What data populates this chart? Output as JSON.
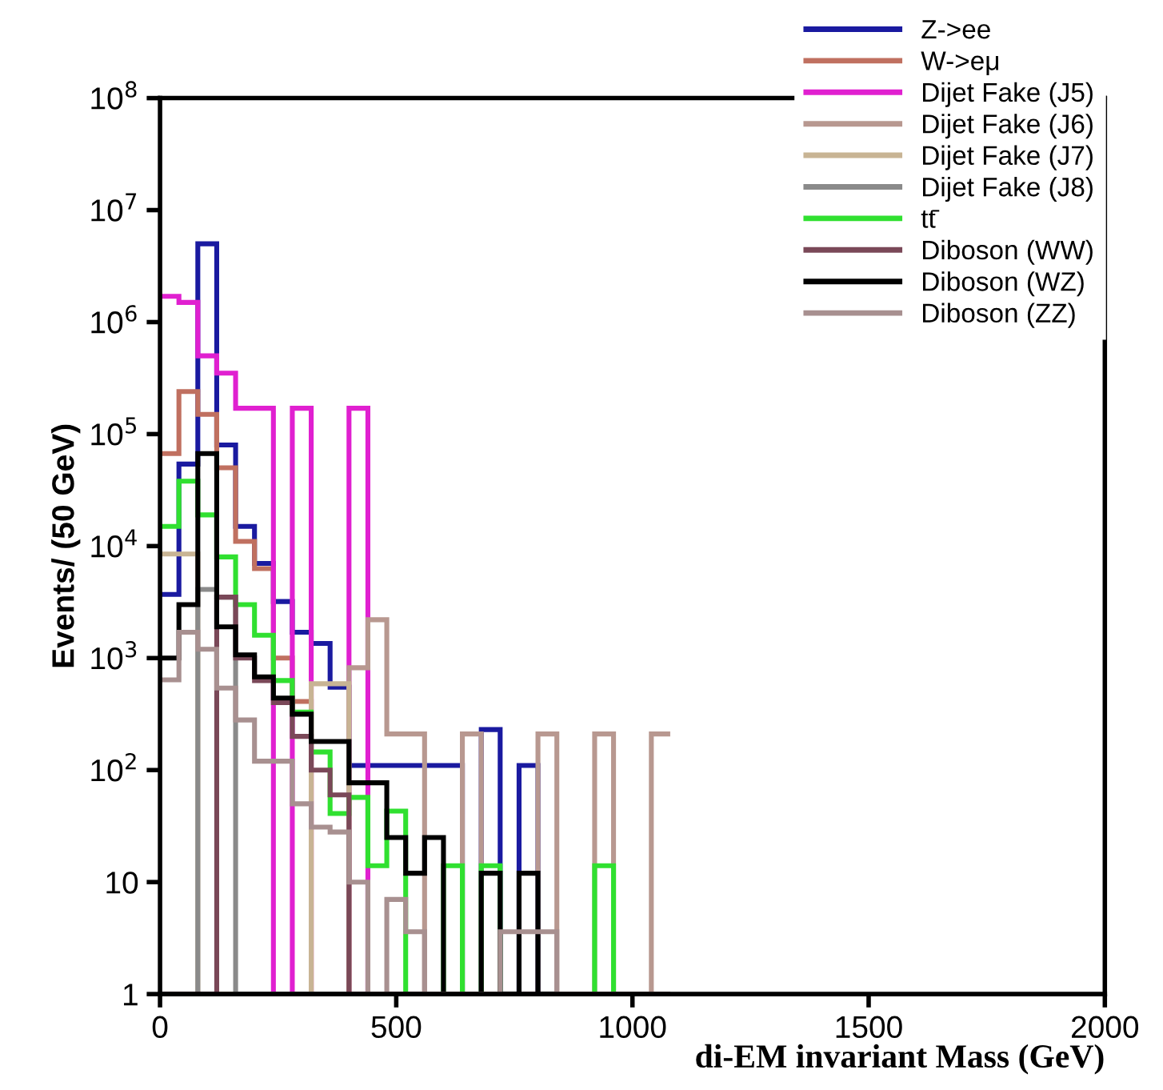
{
  "chart_data": {
    "type": "histogram",
    "xlabel": "di-EM invariant Mass (GeV)",
    "ylabel": "Events/ (50 GeV)",
    "bins": [
      0,
      40,
      80,
      120,
      160,
      200,
      240,
      280,
      320,
      360,
      400,
      440,
      480,
      520,
      560,
      600,
      640,
      680,
      720,
      760,
      800,
      840,
      880,
      920,
      960,
      1000,
      1040,
      1080
    ],
    "series": [
      {
        "name": "Z->ee",
        "color": "#1a1aa0",
        "values": [
          3700,
          54000,
          5000000,
          80000,
          15000,
          7000,
          3200,
          1700,
          1350,
          550,
          110,
          110,
          110,
          110,
          110,
          110,
          null,
          230,
          null,
          110,
          null,
          null,
          null,
          null,
          null,
          null,
          null
        ]
      },
      {
        "name": "W->eμ",
        "color": "#c07060",
        "values": [
          67000,
          240000,
          150000,
          50000,
          11000,
          6300,
          1000,
          410,
          null,
          null,
          null,
          null,
          null,
          null,
          null,
          null,
          null,
          null,
          null,
          null,
          null,
          null,
          null,
          null,
          null,
          null,
          null
        ]
      },
      {
        "name": "Dijet Fake (J5)",
        "color": "#e020d0",
        "values": [
          1700000,
          1500000,
          500000,
          350000,
          170000,
          170000,
          null,
          170000,
          null,
          null,
          170000,
          null,
          null,
          null,
          null,
          null,
          null,
          null,
          null,
          null,
          null,
          null,
          null,
          null,
          null,
          null,
          null
        ]
      },
      {
        "name": "Dijet Fake (J6)",
        "color": "#b89890",
        "values": [
          null,
          null,
          null,
          null,
          null,
          null,
          null,
          null,
          null,
          null,
          820,
          2200,
          210,
          210,
          null,
          null,
          210,
          null,
          null,
          null,
          210,
          null,
          null,
          210,
          null,
          null,
          210
        ]
      },
      {
        "name": "Dijet Fake (J7)",
        "color": "#c8b494",
        "values": [
          8500,
          8500,
          null,
          null,
          null,
          null,
          null,
          null,
          590,
          590,
          null,
          null,
          null,
          null,
          null,
          null,
          null,
          null,
          null,
          null,
          null,
          null,
          null,
          null,
          null,
          null,
          null
        ]
      },
      {
        "name": "Dijet Fake (J8)",
        "color": "#8a8a8a",
        "values": [
          null,
          null,
          4100,
          3500,
          null,
          null,
          null,
          null,
          null,
          null,
          null,
          null,
          null,
          null,
          null,
          null,
          null,
          null,
          null,
          null,
          null,
          null,
          null,
          null,
          null,
          null,
          null
        ]
      },
      {
        "name": "tt̄",
        "color": "#30e030",
        "values": [
          15000,
          38000,
          19000,
          8000,
          3000,
          1600,
          630,
          330,
          145,
          41,
          57,
          14,
          43,
          null,
          null,
          14,
          null,
          14,
          null,
          null,
          null,
          null,
          null,
          14,
          null,
          null,
          null
        ]
      },
      {
        "name": "Diboson (WW)",
        "color": "#7a4858",
        "values": [
          null,
          null,
          null,
          3500,
          1000,
          630,
          400,
          200,
          100,
          60,
          null,
          null,
          null,
          null,
          null,
          null,
          null,
          null,
          null,
          null,
          null,
          null,
          null,
          null,
          null,
          null,
          null
        ]
      },
      {
        "name": "Diboson (WZ)",
        "color": "#000000",
        "values": [
          1000,
          3000,
          67000,
          1900,
          1070,
          680,
          440,
          316,
          180,
          180,
          77,
          77,
          25,
          12,
          25,
          null,
          null,
          12,
          null,
          12,
          null,
          null,
          null,
          null,
          null,
          null,
          null
        ]
      },
      {
        "name": "Diboson (ZZ)",
        "color": "#a89090",
        "values": [
          640,
          1700,
          1200,
          540,
          280,
          120,
          120,
          50,
          31,
          28,
          10,
          null,
          7,
          3.6,
          null,
          null,
          null,
          null,
          3.6,
          3.6,
          3.6,
          null,
          null,
          null,
          null,
          null,
          null
        ]
      }
    ],
    "log": "y",
    "xlim": [
      0,
      2000
    ],
    "ylim": [
      1,
      100000000
    ],
    "xticks": [
      0,
      500,
      1000,
      1500,
      2000
    ],
    "yticks": [
      1,
      10,
      {
        "value": 100,
        "label": "10$^{2}$"
      },
      {
        "value": 1000,
        "label": "10$^{3}$"
      },
      {
        "value": 10000,
        "label": "10$^{4}$"
      },
      {
        "value": 100000,
        "label": "10$^{5}$"
      },
      {
        "value": 1000000,
        "label": "10$^{6}$"
      },
      {
        "value": 10000000,
        "label": "10$^{7}$"
      },
      {
        "value": 100000000,
        "label": "10$^{8}$"
      }
    ],
    "grid": false,
    "legend": "top right"
  }
}
